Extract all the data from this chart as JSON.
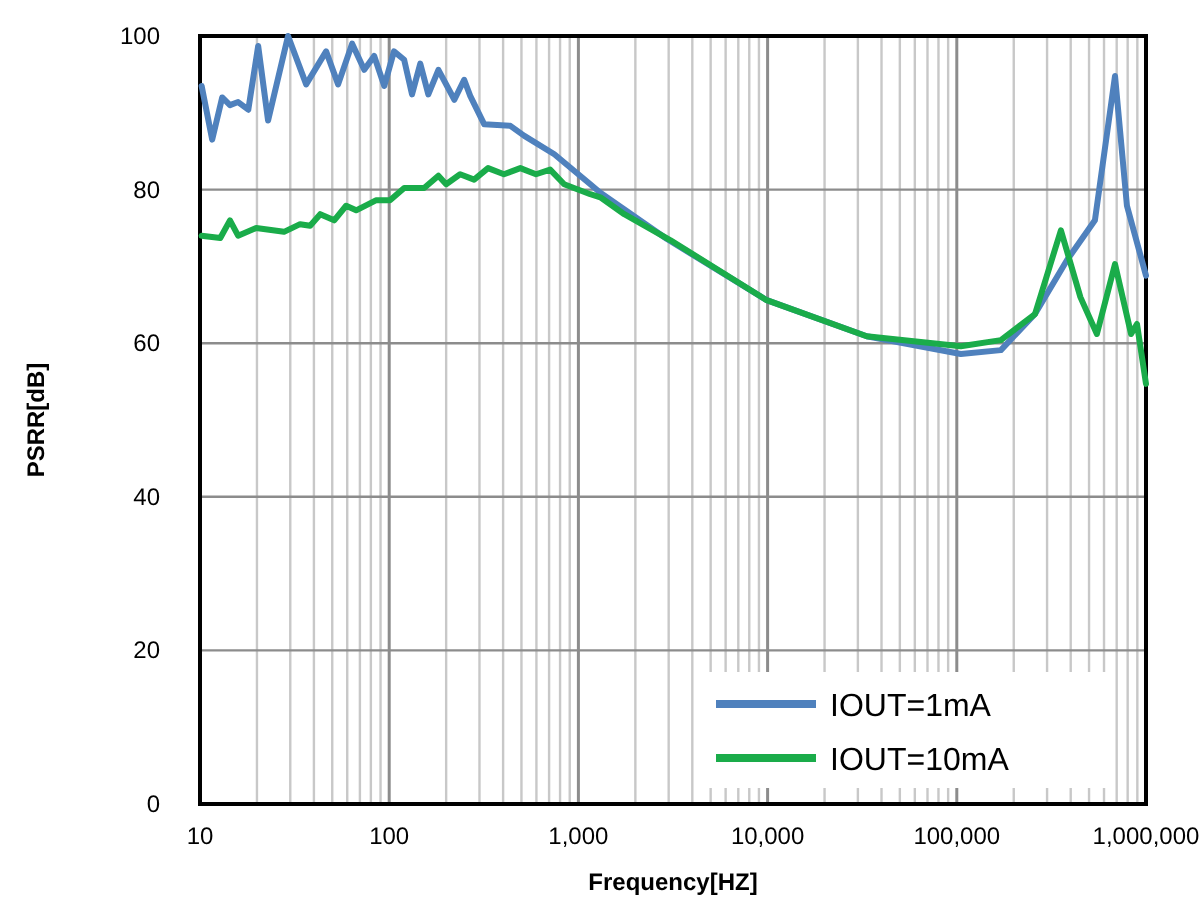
{
  "chart_data": {
    "type": "line",
    "xlabel": "Frequency[HZ]",
    "ylabel": "PSRR[dB]",
    "log": "x",
    "grid": true,
    "legend": "bottom right",
    "line_style": "solid",
    "xlim": [
      10,
      1000000
    ],
    "xticks": [
      10,
      100,
      {
        "value": 1000,
        "label": "1,000"
      },
      {
        "value": 10000,
        "label": "10,000"
      },
      {
        "value": 100000,
        "label": "100,000"
      },
      {
        "value": 1000000,
        "label": "1,000,000"
      }
    ],
    "ylim": [
      0,
      100
    ],
    "yticks": [
      0,
      20,
      40,
      60,
      80,
      100
    ],
    "series": [
      {
        "name": "IOUT=1mA",
        "color": "#4f81bd",
        "x": [
          10.2,
          11.6,
          13.1,
          14.4,
          15.9,
          18,
          20.3,
          22.9,
          29.2,
          36.4,
          46.4,
          53.7,
          63.7,
          73.8,
          83.3,
          94.2,
          106,
          120,
          132,
          146,
          161,
          182,
          221,
          249,
          268,
          318,
          437,
          518,
          746,
          1156,
          1306,
          2924,
          9890,
          33400,
          105000,
          171000,
          259000,
          382000,
          537000,
          686000,
          793000,
          1000000
        ],
        "values": [
          93.5,
          86.5,
          92,
          91,
          91.4,
          90.4,
          98.7,
          89,
          100,
          93.7,
          98,
          93.7,
          99,
          95.6,
          97.4,
          93.5,
          98,
          96.9,
          92.4,
          96.4,
          92.4,
          95.6,
          91.7,
          94.3,
          92.2,
          88.5,
          88.3,
          87,
          84.6,
          80.7,
          79.6,
          73.6,
          65.6,
          60.9,
          58.6,
          59.1,
          63.8,
          70.8,
          76,
          94.8,
          77.9,
          68.8
        ]
      },
      {
        "name": "IOUT=10mA",
        "color": "#1aac4a",
        "x": [
          10.2,
          12.8,
          14.4,
          15.9,
          19.8,
          27.8,
          33.8,
          38.2,
          43.2,
          51.2,
          59.2,
          66.9,
          85,
          101,
          120,
          153,
          182,
          200,
          237,
          281,
          333,
          404,
          493,
          597,
          709,
          841,
          1156,
          1306,
          1747,
          3070,
          9890,
          33400,
          105000,
          171000,
          259000,
          355000,
          450000,
          550000,
          686000,
          834000,
          896000,
          1000000
        ],
        "values": [
          74,
          73.7,
          76,
          74,
          75,
          74.5,
          75.5,
          75.3,
          76.8,
          76,
          77.9,
          77.3,
          78.6,
          78.6,
          80.2,
          80.2,
          81.8,
          80.7,
          82,
          81.3,
          82.8,
          82,
          82.8,
          82,
          82.6,
          80.7,
          79.4,
          79,
          76.8,
          73.4,
          65.6,
          60.9,
          59.6,
          60.4,
          63.8,
          74.7,
          66,
          61.2,
          70.3,
          61.2,
          62.5,
          54.7
        ]
      }
    ]
  }
}
